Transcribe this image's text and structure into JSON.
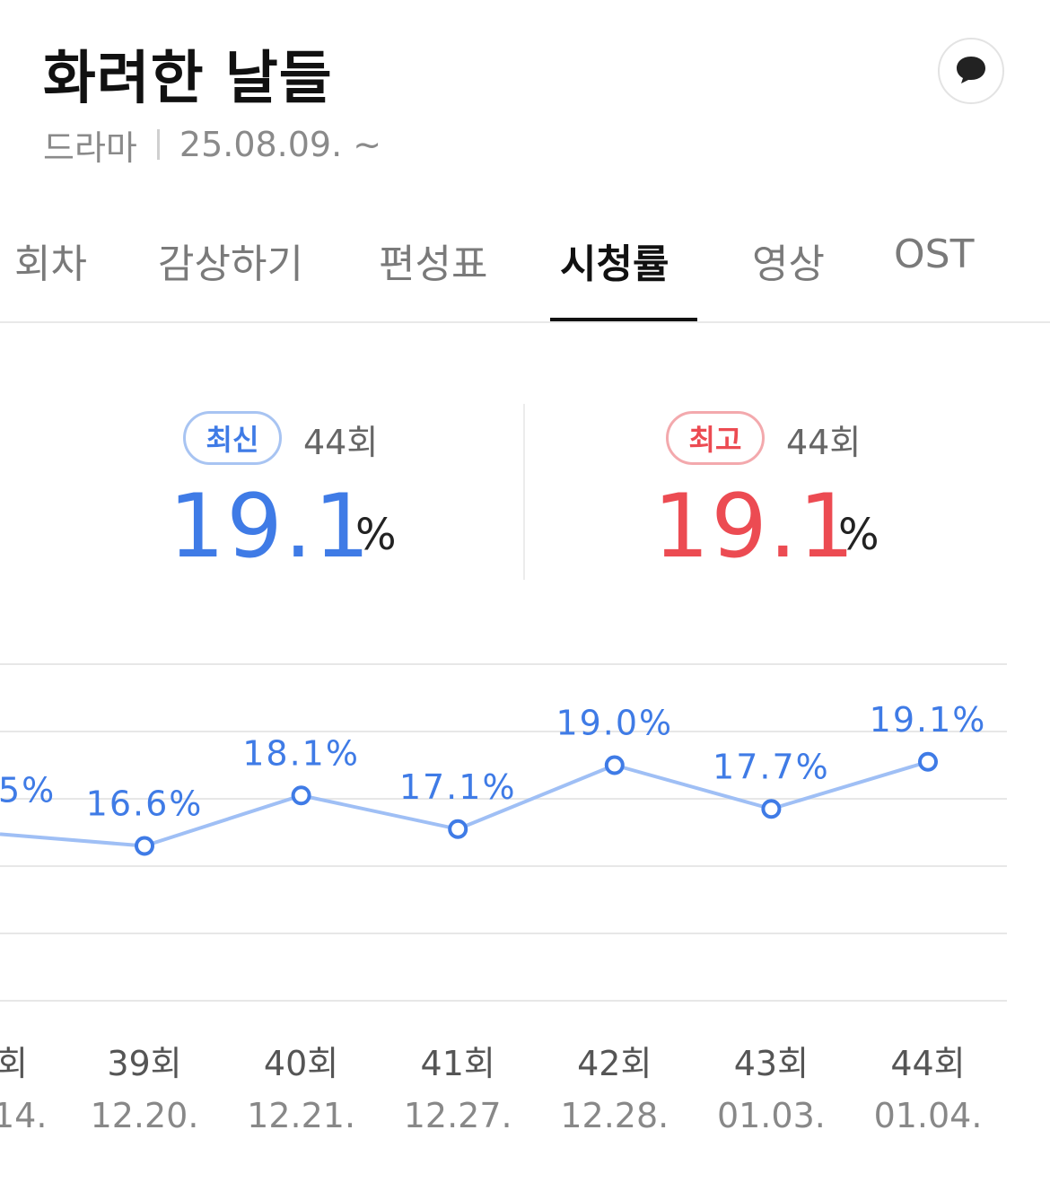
{
  "header": {
    "title": "화려한 날들",
    "genre": "드라마",
    "date": "25.08.09. ~",
    "chat_icon": "chat-bubble-icon"
  },
  "tabs": [
    {
      "label": "회차",
      "active": false
    },
    {
      "label": "감상하기",
      "active": false
    },
    {
      "label": "편성표",
      "active": false
    },
    {
      "label": "시청률",
      "active": true
    },
    {
      "label": "영상",
      "active": false
    },
    {
      "label": "OST",
      "active": false
    }
  ],
  "stats": {
    "latest": {
      "badge": "최신",
      "episode": "44회",
      "value": "19.1",
      "unit": "%"
    },
    "best": {
      "badge": "최고",
      "episode": "44회",
      "value": "19.1",
      "unit": "%"
    }
  },
  "colors": {
    "accent_blue": "#3f7be6",
    "accent_red": "#ec4b52",
    "line": "#9fbff5"
  },
  "chart_data": {
    "type": "line",
    "grid": true,
    "ylim": [
      12,
      22
    ],
    "partial_left": {
      "value_label": "5%",
      "episode_label": "회",
      "date_label": "14."
    },
    "points": [
      {
        "episode": "39회",
        "date": "12.20.",
        "value": 16.6,
        "label": "16.6%"
      },
      {
        "episode": "40회",
        "date": "12.21.",
        "value": 18.1,
        "label": "18.1%"
      },
      {
        "episode": "41회",
        "date": "12.27.",
        "value": 17.1,
        "label": "17.1%"
      },
      {
        "episode": "42회",
        "date": "12.28.",
        "value": 19.0,
        "label": "19.0%"
      },
      {
        "episode": "43회",
        "date": "01.03.",
        "value": 17.7,
        "label": "17.7%"
      },
      {
        "episode": "44회",
        "date": "01.04.",
        "value": 19.1,
        "label": "19.1%"
      }
    ]
  }
}
